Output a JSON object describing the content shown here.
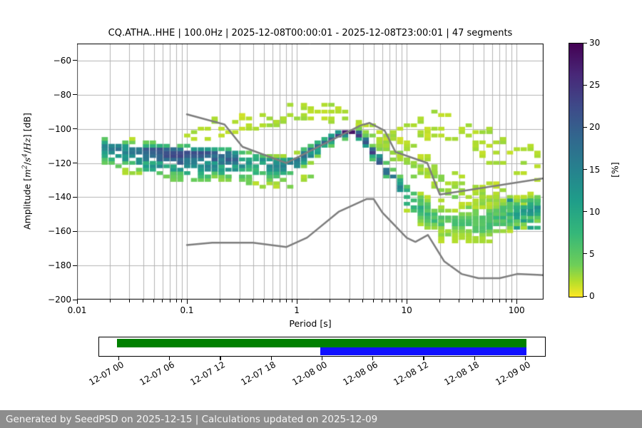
{
  "figure": {
    "title": "CQ.ATHA..HHE | 100.0Hz | 2025-12-08T00:00:01 - 2025-12-08T23:00:01 | 47 segments",
    "footer": "Generated by SeedPSD on 2025-12-15 | Calculations updated on 2025-12-09"
  },
  "chart_data": {
    "type": "heatmap",
    "subtype": "ppsd-probability-histogram",
    "title": "CQ.ATHA..HHE | 100.0Hz | 2025-12-08T00:00:01 - 2025-12-08T23:00:01 | 47 segments",
    "xlabel": "Period [s]",
    "ylabel": "Amplitude [m2/s4/Hz] [dB]",
    "ylabel_parts": {
      "prefix": "Amplitude [",
      "m": "m",
      "m_exp": "2",
      "slash1": "/",
      "s": "s",
      "s_exp": "4",
      "slash2": "/",
      "hz": "Hz",
      "suffix": "] [dB]"
    },
    "xscale": "log",
    "xlim": [
      0.01,
      176
    ],
    "ylim": [
      -200,
      -50
    ],
    "grid": true,
    "grid_color": "#b4b4b4",
    "x_ticks": [
      {
        "value": 0.01,
        "label": "0.01"
      },
      {
        "value": 0.1,
        "label": "0.1"
      },
      {
        "value": 1,
        "label": "1"
      },
      {
        "value": 10,
        "label": "10"
      },
      {
        "value": 100,
        "label": "100"
      }
    ],
    "y_ticks": [
      {
        "value": -60,
        "label": "−60"
      },
      {
        "value": -80,
        "label": "−80"
      },
      {
        "value": -100,
        "label": "−100"
      },
      {
        "value": -120,
        "label": "−120"
      },
      {
        "value": -140,
        "label": "−140"
      },
      {
        "value": -160,
        "label": "−160"
      },
      {
        "value": -180,
        "label": "−180"
      },
      {
        "value": -200,
        "label": "−200"
      }
    ],
    "colorbar": {
      "label": "[%]",
      "min": 0,
      "max": 30,
      "ticks": [
        0,
        5,
        10,
        15,
        20,
        25,
        30
      ],
      "colormap": "viridis_r",
      "viridis_stops": [
        [
          0.0,
          "#440154"
        ],
        [
          0.125,
          "#482878"
        ],
        [
          0.25,
          "#3e4a89"
        ],
        [
          0.375,
          "#31688e"
        ],
        [
          0.5,
          "#26828e"
        ],
        [
          0.625,
          "#1f9e89"
        ],
        [
          0.75,
          "#35b779"
        ],
        [
          0.875,
          "#6ece58"
        ],
        [
          0.94,
          "#b5de2b"
        ],
        [
          1.0,
          "#fde725"
        ]
      ]
    },
    "noise_models": {
      "color": "#7d7d7d",
      "linewidth": 2.5,
      "nhnm": [
        [
          0.1,
          -91.5
        ],
        [
          0.22,
          -97.4
        ],
        [
          0.32,
          -110.5
        ],
        [
          0.8,
          -120.0
        ],
        [
          3.8,
          -98.0
        ],
        [
          4.6,
          -96.5
        ],
        [
          6.3,
          -101.0
        ],
        [
          7.9,
          -113.5
        ],
        [
          15.4,
          -120.0
        ],
        [
          20.0,
          -138.5
        ],
        [
          176.0,
          -129.0
        ]
      ],
      "nlnm": [
        [
          0.1,
          -168.0
        ],
        [
          0.17,
          -166.7
        ],
        [
          0.4,
          -166.7
        ],
        [
          0.8,
          -169.2
        ],
        [
          1.24,
          -163.7
        ],
        [
          2.4,
          -148.6
        ],
        [
          4.3,
          -141.1
        ],
        [
          5.0,
          -141.1
        ],
        [
          6.0,
          -149.0
        ],
        [
          10.0,
          -163.8
        ],
        [
          12.0,
          -166.2
        ],
        [
          15.6,
          -162.1
        ],
        [
          21.9,
          -177.5
        ],
        [
          31.6,
          -185.0
        ],
        [
          45.0,
          -187.5
        ],
        [
          70.0,
          -187.5
        ],
        [
          101.0,
          -185.0
        ],
        [
          154.0,
          -185.5
        ],
        [
          176.0,
          -185.7
        ]
      ]
    },
    "histogram_band": {
      "period_min": 0.018,
      "period_max": 176,
      "bins_per_decade": 16,
      "db_bin": 2,
      "periods": [
        0.018,
        0.025,
        0.04,
        0.07,
        0.1,
        0.15,
        0.22,
        0.3,
        0.45,
        0.6,
        0.8,
        1.0,
        1.2,
        1.5,
        2.0,
        2.5,
        3.0,
        3.5,
        4.0,
        4.7,
        5.7,
        7.0,
        8.5,
        10,
        12,
        15,
        18,
        22,
        27,
        33,
        40,
        50,
        62,
        78,
        95,
        120,
        150,
        176
      ],
      "mode_db": [
        -111,
        -112,
        -113.5,
        -114,
        -115,
        -114.5,
        -115.5,
        -117,
        -119,
        -120,
        -120.5,
        -118.5,
        -114.5,
        -110.5,
        -106,
        -103,
        -101.3,
        -102,
        -104.5,
        -111,
        -118.5,
        -126,
        -132,
        -139,
        -144,
        -149,
        -152,
        -154,
        -155,
        -156,
        -156,
        -155,
        -153,
        -151.5,
        -150,
        -148.5,
        -147,
        -145.5
      ],
      "spread_up": [
        7,
        7,
        6,
        6,
        6,
        6,
        6,
        5,
        5,
        5,
        5,
        4,
        4,
        4,
        3,
        3,
        3,
        3,
        4,
        4,
        5,
        5,
        6,
        8,
        9,
        11,
        12,
        12,
        12,
        12,
        12,
        11,
        11,
        11,
        11,
        10,
        10,
        10
      ],
      "spread_down": [
        12,
        13,
        14,
        16,
        16,
        16,
        15,
        15,
        14,
        14,
        12,
        9,
        8,
        7,
        5,
        4,
        4,
        4,
        5,
        6,
        6,
        7,
        8,
        9,
        10,
        12,
        13,
        13,
        13,
        12,
        12,
        12,
        12,
        11,
        10,
        9,
        9,
        9
      ],
      "core_percent": [
        12,
        14,
        18,
        22,
        22,
        22,
        18,
        15,
        14,
        14,
        15,
        17,
        18,
        18,
        20,
        24,
        30,
        26,
        22,
        20,
        18,
        17,
        16,
        12,
        9,
        7,
        6,
        5,
        5,
        5,
        5,
        6,
        7,
        8,
        9,
        10,
        11,
        12
      ]
    },
    "outlier_curves": [
      {
        "percent": 2,
        "solid": false,
        "points": [
          [
            0.09,
            -104
          ],
          [
            0.2,
            -98
          ],
          [
            0.5,
            -92
          ],
          [
            1,
            -88
          ],
          [
            1.8,
            -86.5
          ],
          [
            3,
            -91
          ],
          [
            4,
            -97
          ]
        ]
      },
      {
        "percent": 2,
        "solid": false,
        "points": [
          [
            0.1,
            -108
          ],
          [
            0.25,
            -102
          ],
          [
            0.6,
            -96
          ],
          [
            1.2,
            -91
          ],
          [
            2,
            -89.5
          ],
          [
            3,
            -94
          ],
          [
            4.5,
            -101
          ]
        ]
      },
      {
        "percent": 2,
        "solid": false,
        "points": [
          [
            0.3,
            -101
          ],
          [
            0.6,
            -98
          ],
          [
            1,
            -95
          ],
          [
            1.6,
            -93
          ],
          [
            2.6,
            -97
          ]
        ]
      },
      {
        "percent": 2,
        "solid": false,
        "points": [
          [
            6,
            -109
          ],
          [
            10,
            -100
          ],
          [
            16,
            -92.5
          ],
          [
            22,
            -91
          ],
          [
            30,
            -95
          ],
          [
            50,
            -103
          ],
          [
            90,
            -110
          ],
          [
            176,
            -116
          ]
        ]
      },
      {
        "percent": 2,
        "solid": false,
        "points": [
          [
            7,
            -114
          ],
          [
            12,
            -105
          ],
          [
            20,
            -98
          ],
          [
            28,
            -100
          ],
          [
            40,
            -106
          ],
          [
            70,
            -113
          ],
          [
            120,
            -119
          ],
          [
            176,
            -123
          ]
        ]
      },
      {
        "percent": 2,
        "solid": false,
        "points": [
          [
            10,
            -112
          ],
          [
            18,
            -104
          ],
          [
            25,
            -104
          ],
          [
            35,
            -110
          ],
          [
            60,
            -118
          ],
          [
            100,
            -125
          ],
          [
            160,
            -130
          ]
        ]
      },
      {
        "percent": 2.5,
        "solid": false,
        "points": [
          [
            3.5,
            -100
          ],
          [
            5,
            -104
          ],
          [
            8,
            -112
          ],
          [
            12,
            -120
          ],
          [
            20,
            -128
          ],
          [
            35,
            -135
          ],
          [
            60,
            -140
          ],
          [
            100,
            -143
          ],
          [
            176,
            -141
          ]
        ]
      },
      {
        "percent": 2.5,
        "solid": false,
        "points": [
          [
            4,
            -103
          ],
          [
            6,
            -110
          ],
          [
            9,
            -118
          ],
          [
            14,
            -126
          ],
          [
            25,
            -133
          ],
          [
            45,
            -139
          ],
          [
            80,
            -144
          ],
          [
            140,
            -147
          ],
          [
            176,
            -148
          ]
        ]
      },
      {
        "percent": 2,
        "solid": false,
        "points": [
          [
            4,
            -98
          ],
          [
            7,
            -104
          ],
          [
            11,
            -112
          ],
          [
            16,
            -118
          ],
          [
            24,
            -124
          ],
          [
            40,
            -131
          ],
          [
            70,
            -137
          ],
          [
            120,
            -141
          ],
          [
            176,
            -139
          ]
        ]
      },
      {
        "percent": 2.5,
        "solid": false,
        "points": [
          [
            5,
            -107
          ],
          [
            8,
            -115
          ],
          [
            13,
            -123
          ],
          [
            20,
            -130
          ],
          [
            30,
            -137
          ],
          [
            50,
            -143
          ],
          [
            90,
            -148
          ],
          [
            176,
            -150
          ]
        ]
      },
      {
        "percent": 3,
        "solid": false,
        "points": [
          [
            3.5,
            -105
          ],
          [
            5.5,
            -112
          ],
          [
            8,
            -120
          ],
          [
            12,
            -128
          ],
          [
            18,
            -134
          ],
          [
            28,
            -140
          ],
          [
            45,
            -146
          ],
          [
            80,
            -151
          ],
          [
            140,
            -154
          ],
          [
            176,
            -155
          ]
        ]
      },
      {
        "percent": 3,
        "solid": false,
        "points": [
          [
            0.15,
            -128
          ],
          [
            0.3,
            -131
          ],
          [
            0.6,
            -133
          ],
          [
            1,
            -131
          ],
          [
            1.5,
            -128
          ]
        ]
      },
      {
        "percent": 10,
        "solid": true,
        "points": [
          [
            80,
            -142
          ],
          [
            176,
            -142
          ]
        ]
      },
      {
        "percent": 12,
        "solid": true,
        "points": [
          [
            70,
            -146
          ],
          [
            176,
            -146
          ]
        ]
      },
      {
        "percent": 13,
        "solid": true,
        "points": [
          [
            60,
            -150
          ],
          [
            176,
            -150
          ]
        ]
      },
      {
        "percent": 11,
        "solid": true,
        "points": [
          [
            90,
            -154
          ],
          [
            176,
            -154
          ]
        ]
      },
      {
        "percent": 9,
        "solid": true,
        "points": [
          [
            100,
            -158
          ],
          [
            176,
            -158
          ]
        ]
      }
    ]
  },
  "timeline": {
    "ticks": [
      "12-07 00",
      "12-07 06",
      "12-07 12",
      "12-07 18",
      "12-08 00",
      "12-08 06",
      "12-08 12",
      "12-08 18",
      "12-09 00"
    ],
    "segments": [
      {
        "name": "coverage-calculated",
        "color": "#008000",
        "start_tick": 0,
        "end_tick": 8,
        "row": "top"
      },
      {
        "name": "selected-day",
        "color": "#1010ff",
        "start_tick": 4,
        "end_tick": 8,
        "row": "bottom"
      }
    ]
  }
}
